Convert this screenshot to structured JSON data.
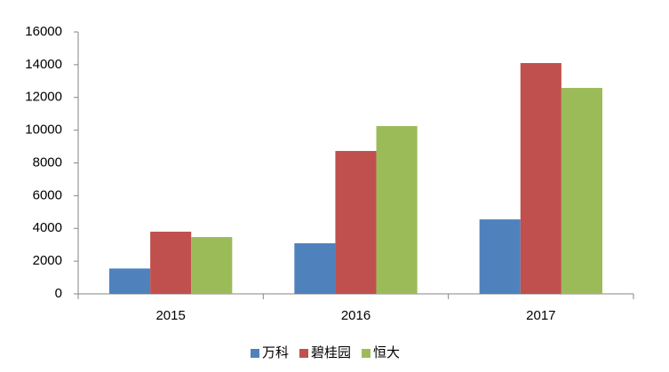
{
  "chart_data": {
    "type": "bar",
    "categories": [
      "2015",
      "2016",
      "2017"
    ],
    "series": [
      {
        "name": "万科",
        "color": "#4f81bd",
        "values": [
          1550,
          3090,
          4550
        ]
      },
      {
        "name": "碧桂园",
        "color": "#c0504d",
        "values": [
          3800,
          8730,
          14100
        ]
      },
      {
        "name": "恒大",
        "color": "#9bbb59",
        "values": [
          3470,
          10250,
          12580
        ]
      }
    ],
    "ylim": [
      0,
      16000
    ],
    "yticks": [
      0,
      2000,
      4000,
      6000,
      8000,
      10000,
      12000,
      14000,
      16000
    ],
    "grid": false,
    "legend": "bottom"
  }
}
